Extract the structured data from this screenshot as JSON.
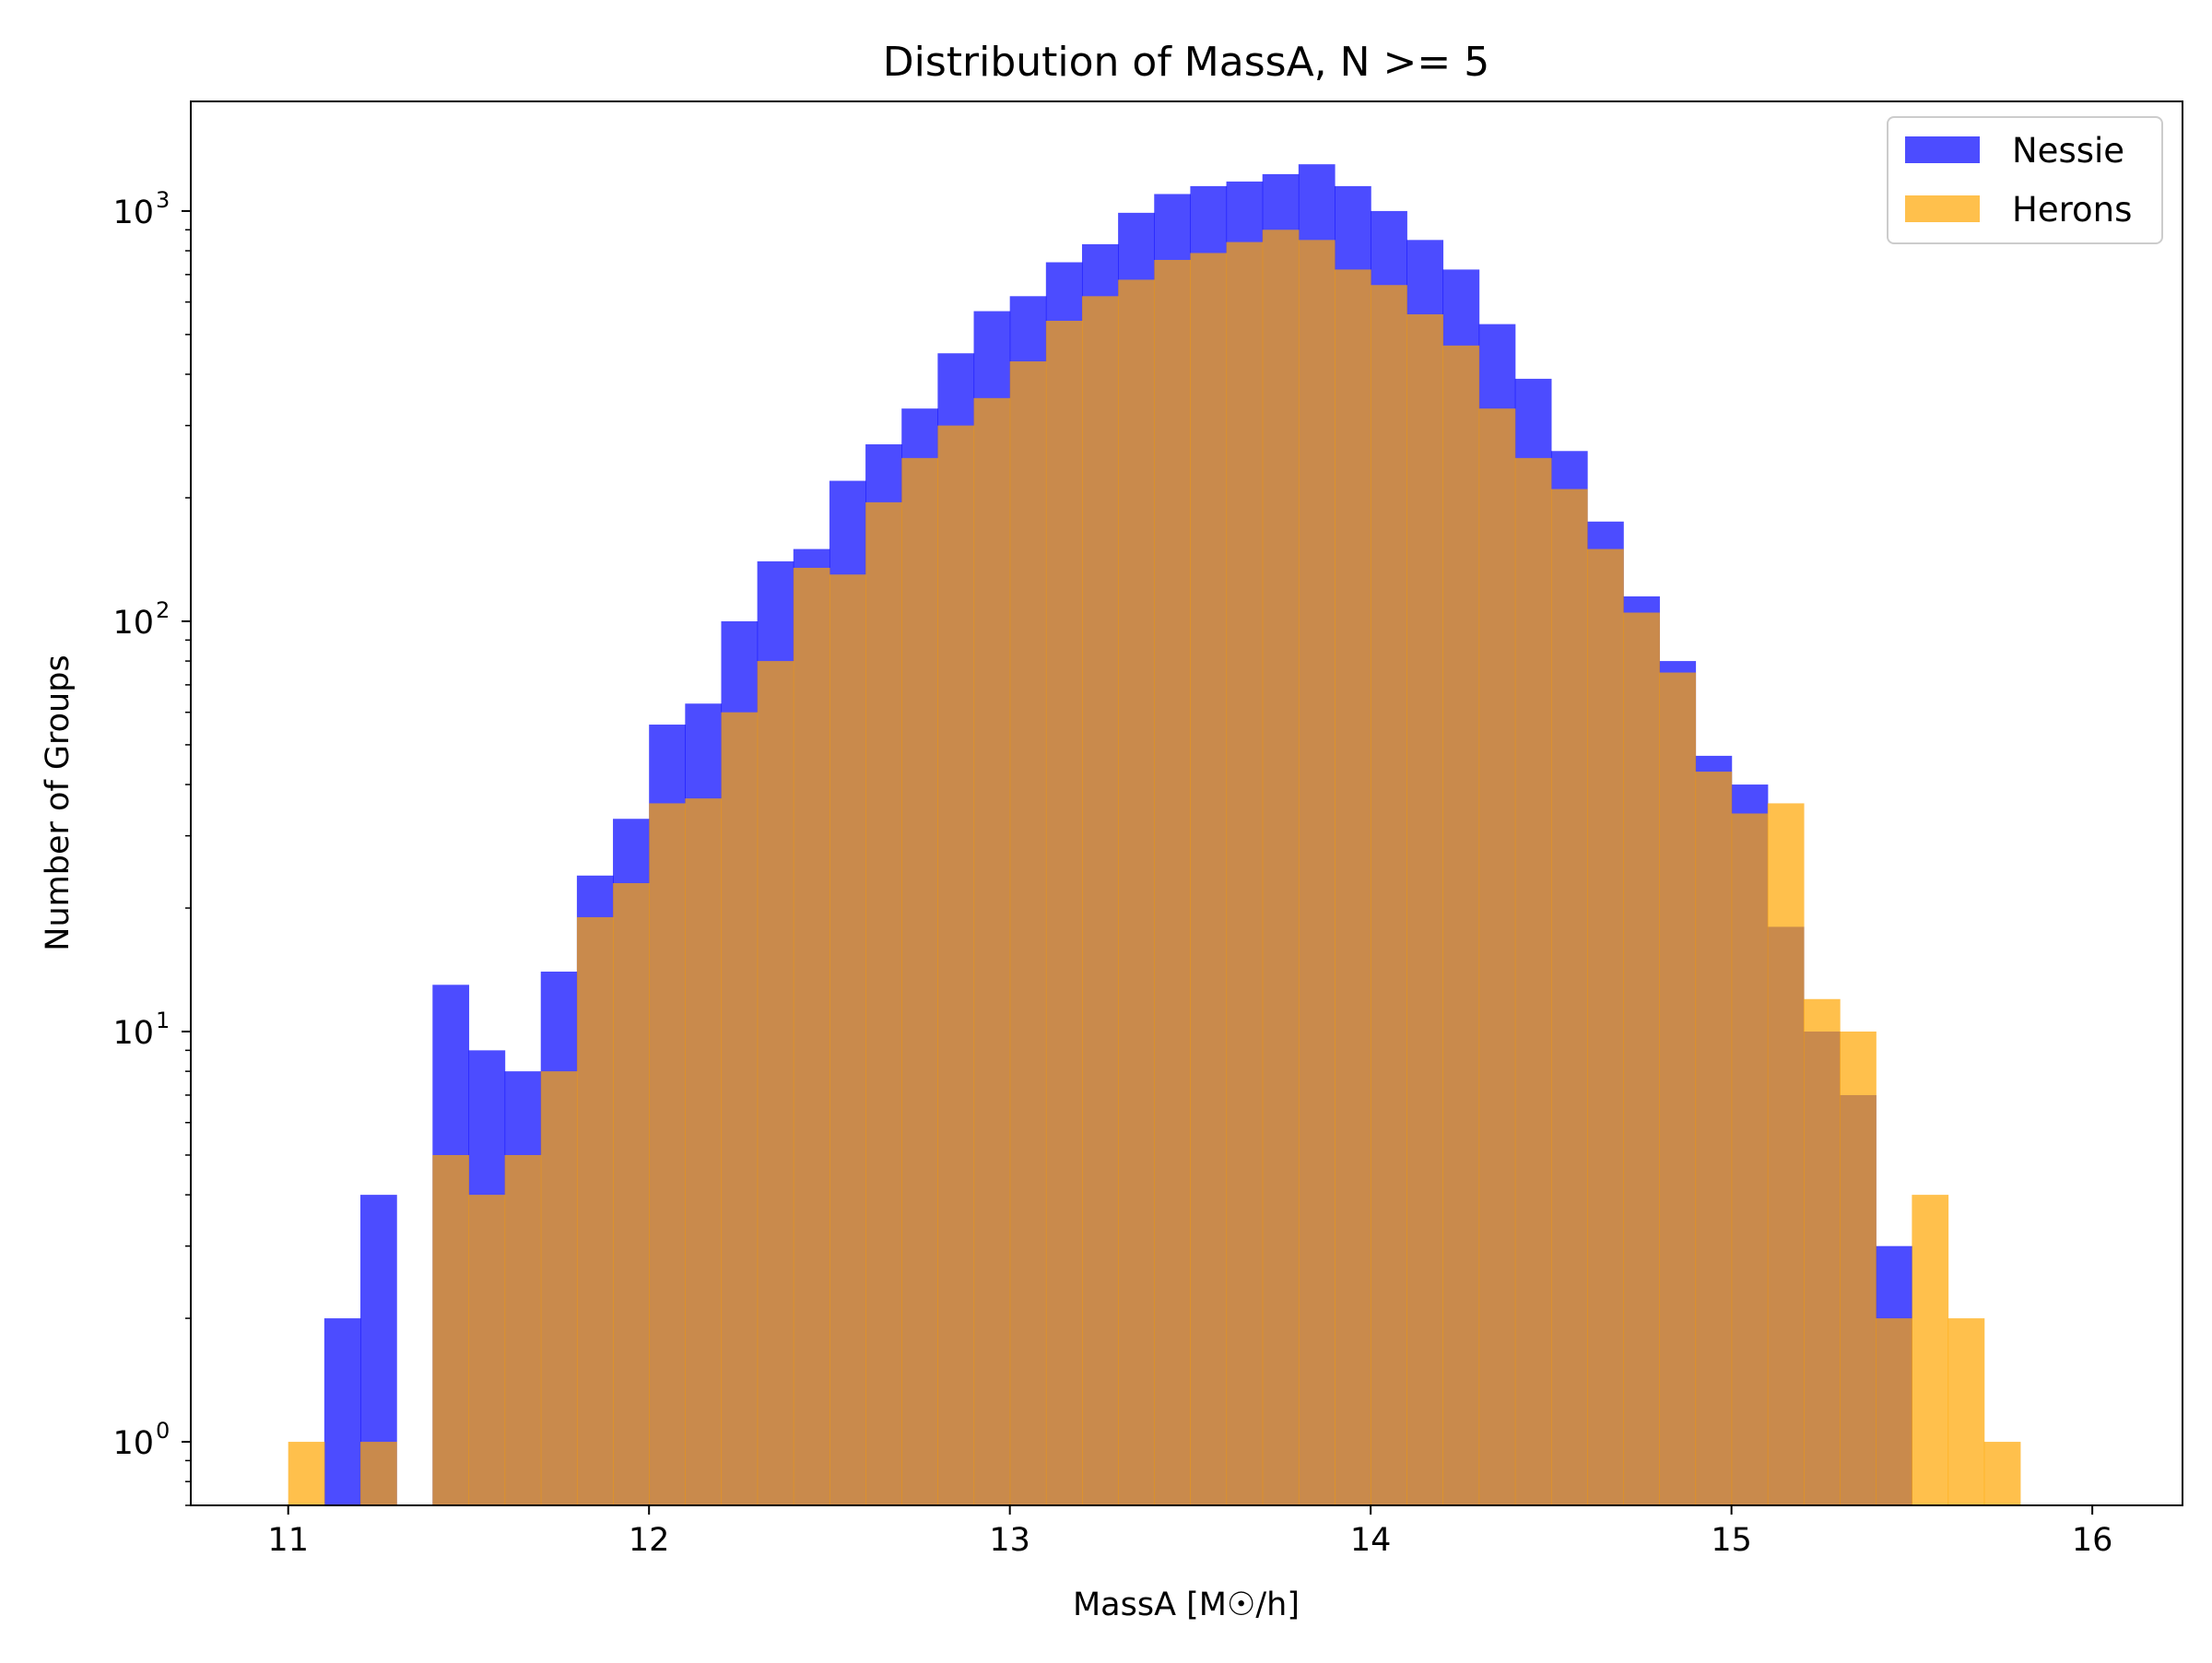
{
  "chart_data": {
    "type": "bar",
    "subtype": "histogram",
    "title": "Distribution of MassA, N >= 5",
    "xlabel": "MassA [M☉/h]",
    "ylabel": "Number of Groups",
    "xlim": [
      10.73,
      16.25
    ],
    "ylim": [
      0.7,
      1850
    ],
    "yscale": "log",
    "grid": false,
    "legend_position": "top-right",
    "xticks": [
      {
        "value": 11,
        "label": "11"
      },
      {
        "value": 12,
        "label": "12"
      },
      {
        "value": 13,
        "label": "13"
      },
      {
        "value": 14,
        "label": "14"
      },
      {
        "value": 15,
        "label": "15"
      },
      {
        "value": 16,
        "label": "16"
      }
    ],
    "yticks": [
      {
        "value": 1,
        "base": "10",
        "exp": "0"
      },
      {
        "value": 10,
        "base": "10",
        "exp": "1"
      },
      {
        "value": 100,
        "base": "10",
        "exp": "2"
      },
      {
        "value": 1000,
        "base": "10",
        "exp": "3"
      }
    ],
    "bin_start": 11.0,
    "bin_width": 0.1,
    "series": [
      {
        "name": "Nessie",
        "color": "#0000ff",
        "alpha": 0.7,
        "values": [
          0,
          2,
          4,
          0,
          13,
          9,
          8,
          14,
          24,
          33,
          56,
          63,
          100,
          140,
          150,
          220,
          270,
          330,
          450,
          570,
          620,
          750,
          830,
          990,
          1100,
          1150,
          1180,
          1230,
          1300,
          1150,
          1000,
          850,
          720,
          530,
          390,
          260,
          175,
          115,
          80,
          47,
          40,
          18,
          10,
          7,
          3,
          0,
          0
        ]
      },
      {
        "name": "Herons",
        "color": "#ffa500",
        "alpha": 0.7,
        "values": [
          1,
          0,
          1,
          0,
          5,
          4,
          5,
          8,
          19,
          23,
          36,
          37,
          60,
          80,
          135,
          130,
          195,
          250,
          300,
          350,
          430,
          540,
          620,
          680,
          760,
          790,
          840,
          900,
          850,
          720,
          660,
          560,
          470,
          330,
          250,
          210,
          150,
          105,
          75,
          43,
          34,
          36,
          12,
          10,
          2,
          4,
          2,
          1
        ]
      }
    ]
  }
}
